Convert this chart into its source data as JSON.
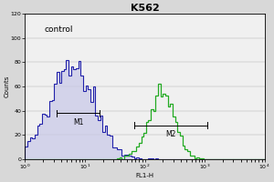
{
  "title": "K562",
  "xlabel": "FL1-H",
  "ylabel": "Counts",
  "annotation": "control",
  "xlim_log": [
    0,
    4
  ],
  "ylim": [
    0,
    120
  ],
  "yticks": [
    0,
    20,
    40,
    60,
    80,
    100,
    120
  ],
  "bg_color": "#d8d8d8",
  "plot_bg_color": "#f0f0f0",
  "blue_color": "#2222aa",
  "green_color": "#22aa22",
  "blue_peak_log": 0.78,
  "blue_sigma": 0.38,
  "blue_n": 4000,
  "blue_scale": 82,
  "green_peak_log": 2.28,
  "green_sigma": 0.22,
  "green_n": 2000,
  "green_scale": 62,
  "m1_label": "M1",
  "m2_label": "M2",
  "m1_x_start_log": 0.52,
  "m1_x_end_log": 1.25,
  "m1_y": 38,
  "m2_x_start_log": 1.82,
  "m2_x_end_log": 3.05,
  "m2_y": 28,
  "title_fontsize": 8,
  "label_fontsize": 5,
  "tick_fontsize": 4.5,
  "annotation_fontsize": 6.5,
  "marker_fontsize": 5.5,
  "lw_blue": 0.8,
  "lw_green": 0.9,
  "lw_marker": 0.7
}
